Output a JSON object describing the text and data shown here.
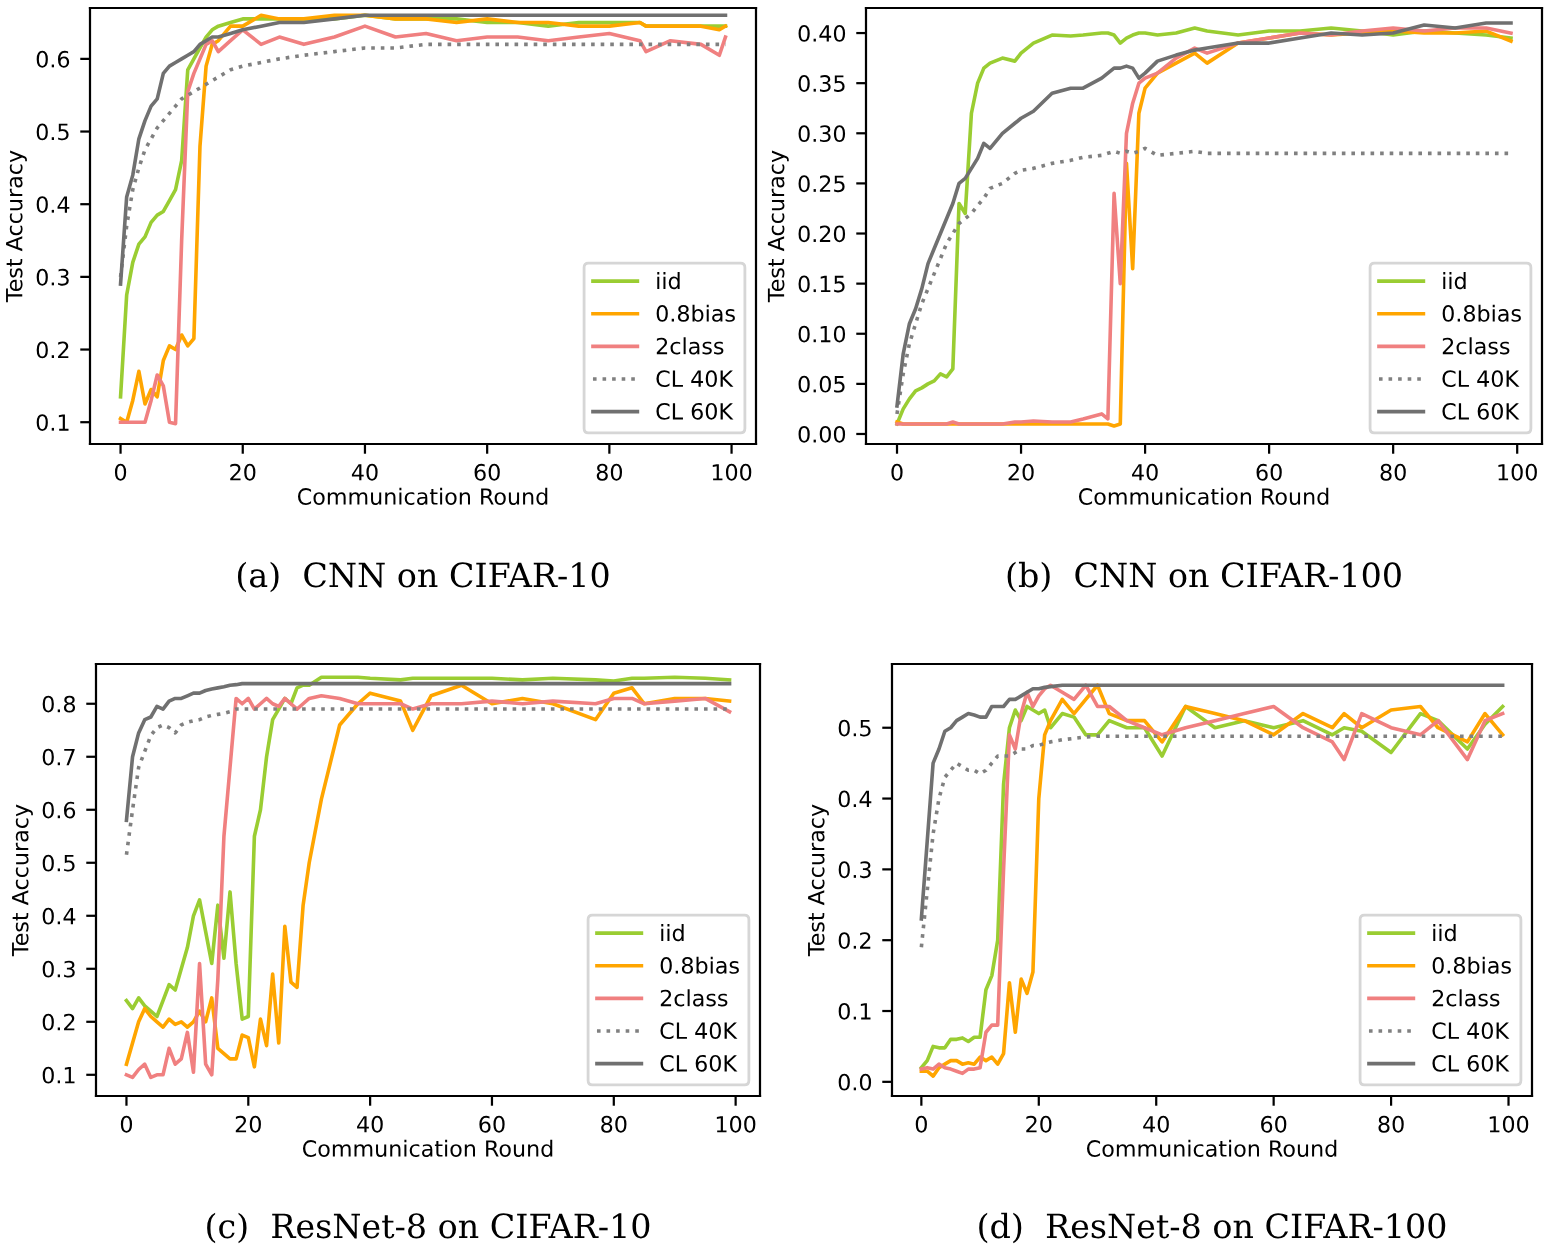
{
  "chart_data": [
    {
      "type": "line",
      "title": "(a)  CNN on CIFAR-10",
      "xlabel": "Communication Round",
      "ylabel": "Test Accuracy",
      "legend": "bottom right",
      "xlim": [
        -5,
        104
      ],
      "xticks": [
        0,
        20,
        40,
        60,
        80,
        100
      ],
      "ylim": [
        0.07,
        0.67
      ],
      "yticks": [
        0.1,
        0.2,
        0.3,
        0.4,
        0.5,
        0.6
      ],
      "x": [
        0,
        1,
        2,
        3,
        4,
        5,
        6,
        7,
        8,
        9,
        10,
        11,
        12,
        13,
        14,
        15,
        16,
        18,
        20,
        23,
        26,
        30,
        35,
        40,
        45,
        50,
        55,
        60,
        65,
        70,
        75,
        80,
        85,
        86,
        90,
        95,
        98,
        99
      ],
      "series": [
        {
          "name": "iid",
          "color": "#9acd32",
          "values": [
            0.135,
            0.275,
            0.32,
            0.345,
            0.355,
            0.375,
            0.385,
            0.39,
            0.405,
            0.42,
            0.46,
            0.585,
            0.6,
            0.615,
            0.63,
            0.64,
            0.645,
            0.65,
            0.655,
            0.655,
            0.655,
            0.655,
            0.655,
            0.66,
            0.655,
            0.655,
            0.655,
            0.65,
            0.65,
            0.645,
            0.65,
            0.65,
            0.65,
            0.645,
            0.645,
            0.645,
            0.645,
            0.645
          ]
        },
        {
          "name": "0.8bias",
          "color": "#ffa500",
          "values": [
            0.105,
            0.1,
            0.13,
            0.17,
            0.125,
            0.145,
            0.135,
            0.185,
            0.205,
            0.2,
            0.22,
            0.205,
            0.215,
            0.48,
            0.59,
            0.62,
            0.625,
            0.645,
            0.645,
            0.66,
            0.655,
            0.655,
            0.66,
            0.66,
            0.655,
            0.655,
            0.65,
            0.655,
            0.65,
            0.65,
            0.645,
            0.645,
            0.65,
            0.645,
            0.645,
            0.645,
            0.64,
            0.645
          ]
        },
        {
          "name": "2class",
          "color": "#f08080",
          "values": [
            0.1,
            0.1,
            0.1,
            0.1,
            0.1,
            0.13,
            0.165,
            0.15,
            0.1,
            0.098,
            0.35,
            0.555,
            0.58,
            0.6,
            0.62,
            0.625,
            0.61,
            0.625,
            0.64,
            0.62,
            0.63,
            0.62,
            0.63,
            0.645,
            0.63,
            0.635,
            0.625,
            0.63,
            0.63,
            0.625,
            0.63,
            0.635,
            0.625,
            0.61,
            0.625,
            0.62,
            0.605,
            0.63
          ]
        },
        {
          "name": "CL 40K",
          "color": "#808080",
          "line_style": "dotted",
          "values": [
            0.3,
            0.37,
            0.42,
            0.45,
            0.475,
            0.49,
            0.505,
            0.515,
            0.525,
            0.535,
            0.545,
            0.55,
            0.555,
            0.56,
            0.565,
            0.57,
            0.575,
            0.585,
            0.59,
            0.595,
            0.6,
            0.605,
            0.61,
            0.615,
            0.615,
            0.62,
            0.62,
            0.62,
            0.62,
            0.62,
            0.62,
            0.62,
            0.62,
            0.62,
            0.62,
            0.62,
            0.62,
            0.62
          ]
        },
        {
          "name": "CL 60K",
          "color": "#707070",
          "values": [
            0.29,
            0.41,
            0.44,
            0.49,
            0.515,
            0.535,
            0.545,
            0.58,
            0.59,
            0.595,
            0.6,
            0.605,
            0.61,
            0.62,
            0.625,
            0.63,
            0.63,
            0.635,
            0.64,
            0.645,
            0.65,
            0.65,
            0.655,
            0.66,
            0.66,
            0.66,
            0.66,
            0.66,
            0.66,
            0.66,
            0.66,
            0.66,
            0.66,
            0.66,
            0.66,
            0.66,
            0.66,
            0.66
          ]
        }
      ]
    },
    {
      "type": "line",
      "title": "(b)  CNN on CIFAR-100",
      "xlabel": "Communication Round",
      "ylabel": "Test Accuracy",
      "legend": "bottom right",
      "xlim": [
        -5,
        104
      ],
      "xticks": [
        0,
        20,
        40,
        60,
        80,
        100
      ],
      "ylim": [
        -0.01,
        0.425
      ],
      "yticks": [
        {
          "value": 0,
          "label": "0.00"
        },
        0.05,
        {
          "value": 0.1,
          "label": "0.10"
        },
        0.15,
        {
          "value": 0.2,
          "label": "0.20"
        },
        0.25,
        {
          "value": 0.3,
          "label": "0.30"
        },
        0.35,
        {
          "value": 0.4,
          "label": "0.40"
        }
      ],
      "x": [
        0,
        1,
        2,
        3,
        4,
        5,
        6,
        7,
        8,
        9,
        10,
        11,
        12,
        13,
        14,
        15,
        17,
        19,
        20,
        22,
        25,
        28,
        30,
        33,
        34,
        35,
        36,
        37,
        38,
        39,
        40,
        42,
        45,
        48,
        50,
        55,
        60,
        65,
        70,
        75,
        80,
        85,
        90,
        95,
        99
      ],
      "series": [
        {
          "name": "iid",
          "color": "#9acd32",
          "values": [
            0.01,
            0.025,
            0.035,
            0.043,
            0.046,
            0.05,
            0.053,
            0.06,
            0.057,
            0.065,
            0.23,
            0.22,
            0.32,
            0.35,
            0.365,
            0.37,
            0.375,
            0.372,
            0.38,
            0.39,
            0.398,
            0.397,
            0.398,
            0.4,
            0.4,
            0.398,
            0.39,
            0.395,
            0.398,
            0.4,
            0.4,
            0.398,
            0.4,
            0.405,
            0.402,
            0.398,
            0.402,
            0.402,
            0.405,
            0.402,
            0.398,
            0.402,
            0.4,
            0.398,
            0.395
          ]
        },
        {
          "name": "0.8bias",
          "color": "#ffa500",
          "values": [
            0.012,
            0.01,
            0.01,
            0.01,
            0.01,
            0.01,
            0.01,
            0.01,
            0.01,
            0.01,
            0.01,
            0.01,
            0.01,
            0.01,
            0.01,
            0.01,
            0.01,
            0.01,
            0.01,
            0.01,
            0.01,
            0.01,
            0.01,
            0.01,
            0.01,
            0.008,
            0.01,
            0.27,
            0.165,
            0.32,
            0.345,
            0.36,
            0.37,
            0.38,
            0.37,
            0.39,
            0.395,
            0.4,
            0.398,
            0.4,
            0.402,
            0.4,
            0.4,
            0.402,
            0.392
          ]
        },
        {
          "name": "2class",
          "color": "#f08080",
          "values": [
            0.01,
            0.01,
            0.01,
            0.01,
            0.01,
            0.01,
            0.01,
            0.01,
            0.01,
            0.012,
            0.01,
            0.01,
            0.01,
            0.01,
            0.01,
            0.01,
            0.01,
            0.012,
            0.012,
            0.013,
            0.012,
            0.012,
            0.015,
            0.02,
            0.015,
            0.24,
            0.15,
            0.3,
            0.33,
            0.35,
            0.355,
            0.36,
            0.375,
            0.385,
            0.38,
            0.39,
            0.395,
            0.4,
            0.398,
            0.402,
            0.405,
            0.402,
            0.405,
            0.405,
            0.4
          ]
        },
        {
          "name": "CL 40K",
          "color": "#808080",
          "line_style": "dotted",
          "values": [
            0.02,
            0.06,
            0.09,
            0.11,
            0.13,
            0.145,
            0.16,
            0.175,
            0.19,
            0.2,
            0.21,
            0.215,
            0.22,
            0.228,
            0.235,
            0.245,
            0.25,
            0.26,
            0.263,
            0.265,
            0.27,
            0.273,
            0.276,
            0.278,
            0.28,
            0.282,
            0.28,
            0.282,
            0.28,
            0.282,
            0.285,
            0.278,
            0.28,
            0.282,
            0.28,
            0.28,
            0.28,
            0.28,
            0.28,
            0.28,
            0.28,
            0.28,
            0.28,
            0.28,
            0.28
          ]
        },
        {
          "name": "CL 60K",
          "color": "#707070",
          "values": [
            0.028,
            0.08,
            0.11,
            0.125,
            0.145,
            0.17,
            0.185,
            0.2,
            0.215,
            0.23,
            0.25,
            0.255,
            0.265,
            0.275,
            0.29,
            0.285,
            0.3,
            0.31,
            0.315,
            0.322,
            0.34,
            0.345,
            0.345,
            0.355,
            0.36,
            0.365,
            0.365,
            0.367,
            0.365,
            0.355,
            0.36,
            0.372,
            0.378,
            0.383,
            0.385,
            0.39,
            0.39,
            0.395,
            0.4,
            0.398,
            0.4,
            0.408,
            0.405,
            0.41,
            0.41
          ]
        }
      ]
    },
    {
      "type": "line",
      "title": "(c)  ResNet-8 on CIFAR-10",
      "xlabel": "Communication Round",
      "ylabel": "Test Accuracy",
      "legend": "bottom right",
      "xlim": [
        -5,
        104
      ],
      "xticks": [
        0,
        20,
        40,
        60,
        80,
        100
      ],
      "ylim": [
        0.06,
        0.875
      ],
      "yticks": [
        0.1,
        0.2,
        0.3,
        0.4,
        0.5,
        0.6,
        0.7,
        0.8
      ],
      "x": [
        0,
        1,
        2,
        3,
        4,
        5,
        6,
        7,
        8,
        9,
        10,
        11,
        12,
        13,
        14,
        15,
        16,
        17,
        18,
        19,
        20,
        21,
        22,
        23,
        24,
        25,
        26,
        27,
        28,
        29,
        30,
        32,
        35,
        38,
        40,
        45,
        47,
        50,
        55,
        60,
        65,
        70,
        77,
        80,
        83,
        85,
        90,
        95,
        99
      ],
      "series": [
        {
          "name": "iid",
          "color": "#9acd32",
          "values": [
            0.24,
            0.225,
            0.245,
            0.23,
            0.22,
            0.21,
            0.24,
            0.27,
            0.26,
            0.3,
            0.34,
            0.4,
            0.43,
            0.37,
            0.31,
            0.42,
            0.32,
            0.445,
            0.31,
            0.205,
            0.21,
            0.55,
            0.6,
            0.7,
            0.77,
            0.79,
            0.81,
            0.8,
            0.83,
            0.835,
            0.835,
            0.85,
            0.85,
            0.85,
            0.848,
            0.845,
            0.848,
            0.848,
            0.848,
            0.848,
            0.845,
            0.848,
            0.845,
            0.843,
            0.848,
            0.848,
            0.85,
            0.848,
            0.845
          ]
        },
        {
          "name": "0.8bias",
          "color": "#ffa500",
          "values": [
            0.12,
            0.16,
            0.2,
            0.225,
            0.21,
            0.2,
            0.19,
            0.205,
            0.195,
            0.2,
            0.19,
            0.2,
            0.22,
            0.2,
            0.245,
            0.15,
            0.14,
            0.13,
            0.13,
            0.175,
            0.17,
            0.115,
            0.205,
            0.155,
            0.29,
            0.16,
            0.38,
            0.275,
            0.265,
            0.42,
            0.5,
            0.62,
            0.76,
            0.8,
            0.82,
            0.805,
            0.75,
            0.815,
            0.835,
            0.8,
            0.81,
            0.8,
            0.77,
            0.82,
            0.83,
            0.8,
            0.81,
            0.81,
            0.805
          ]
        },
        {
          "name": "2class",
          "color": "#f08080",
          "values": [
            0.1,
            0.095,
            0.11,
            0.12,
            0.095,
            0.1,
            0.1,
            0.15,
            0.12,
            0.13,
            0.18,
            0.105,
            0.31,
            0.12,
            0.1,
            0.28,
            0.55,
            0.68,
            0.81,
            0.8,
            0.81,
            0.79,
            0.8,
            0.81,
            0.8,
            0.795,
            0.81,
            0.8,
            0.79,
            0.8,
            0.81,
            0.815,
            0.81,
            0.8,
            0.8,
            0.8,
            0.79,
            0.8,
            0.8,
            0.805,
            0.8,
            0.805,
            0.8,
            0.81,
            0.81,
            0.8,
            0.805,
            0.81,
            0.785
          ]
        },
        {
          "name": "CL 40K",
          "color": "#808080",
          "line_style": "dotted",
          "values": [
            0.515,
            0.6,
            0.68,
            0.71,
            0.74,
            0.755,
            0.76,
            0.755,
            0.745,
            0.76,
            0.765,
            0.768,
            0.77,
            0.775,
            0.778,
            0.78,
            0.782,
            0.785,
            0.79,
            0.79,
            0.79,
            0.79,
            0.79,
            0.79,
            0.79,
            0.79,
            0.79,
            0.79,
            0.79,
            0.79,
            0.79,
            0.79,
            0.79,
            0.79,
            0.79,
            0.79,
            0.79,
            0.79,
            0.79,
            0.79,
            0.79,
            0.79,
            0.79,
            0.79,
            0.79,
            0.79,
            0.79,
            0.79,
            0.79
          ]
        },
        {
          "name": "CL 60K",
          "color": "#707070",
          "values": [
            0.58,
            0.7,
            0.745,
            0.77,
            0.775,
            0.795,
            0.79,
            0.805,
            0.81,
            0.81,
            0.815,
            0.82,
            0.82,
            0.825,
            0.828,
            0.83,
            0.832,
            0.835,
            0.836,
            0.838,
            0.838,
            0.838,
            0.838,
            0.838,
            0.838,
            0.838,
            0.838,
            0.838,
            0.838,
            0.838,
            0.838,
            0.838,
            0.838,
            0.838,
            0.838,
            0.838,
            0.838,
            0.838,
            0.838,
            0.838,
            0.838,
            0.838,
            0.838,
            0.838,
            0.838,
            0.838,
            0.838,
            0.838,
            0.838
          ]
        }
      ]
    },
    {
      "type": "line",
      "title": "(d)  ResNet-8 on CIFAR-100",
      "xlabel": "Communication Round",
      "ylabel": "Test Accuracy",
      "legend": "bottom right",
      "xlim": [
        -5,
        104
      ],
      "xticks": [
        0,
        20,
        40,
        60,
        80,
        100
      ],
      "ylim": [
        -0.02,
        0.59
      ],
      "yticks": [
        {
          "value": 0,
          "label": "0.0"
        },
        0.1,
        0.2,
        0.3,
        0.4,
        0.5
      ],
      "x": [
        0,
        1,
        2,
        3,
        4,
        5,
        6,
        7,
        8,
        9,
        10,
        11,
        12,
        13,
        14,
        15,
        16,
        17,
        18,
        19,
        20,
        21,
        22,
        24,
        26,
        28,
        30,
        32,
        35,
        38,
        41,
        45,
        50,
        55,
        60,
        65,
        70,
        72,
        75,
        80,
        85,
        88,
        93,
        96,
        99
      ],
      "series": [
        {
          "name": "iid",
          "color": "#9acd32",
          "values": [
            0.02,
            0.03,
            0.05,
            0.048,
            0.048,
            0.06,
            0.06,
            0.062,
            0.057,
            0.063,
            0.063,
            0.13,
            0.15,
            0.2,
            0.42,
            0.5,
            0.525,
            0.51,
            0.53,
            0.525,
            0.52,
            0.525,
            0.5,
            0.52,
            0.515,
            0.49,
            0.49,
            0.51,
            0.5,
            0.5,
            0.46,
            0.53,
            0.5,
            0.51,
            0.5,
            0.51,
            0.49,
            0.5,
            0.495,
            0.465,
            0.52,
            0.51,
            0.47,
            0.505,
            0.53
          ]
        },
        {
          "name": "0.8bias",
          "color": "#ffa500",
          "values": [
            0.015,
            0.015,
            0.008,
            0.02,
            0.025,
            0.03,
            0.03,
            0.025,
            0.027,
            0.025,
            0.035,
            0.03,
            0.035,
            0.025,
            0.04,
            0.14,
            0.07,
            0.145,
            0.125,
            0.155,
            0.4,
            0.49,
            0.51,
            0.54,
            0.52,
            0.54,
            0.56,
            0.52,
            0.51,
            0.51,
            0.48,
            0.53,
            0.52,
            0.51,
            0.49,
            0.52,
            0.5,
            0.52,
            0.5,
            0.525,
            0.53,
            0.5,
            0.48,
            0.52,
            0.49
          ]
        },
        {
          "name": "2class",
          "color": "#f08080",
          "values": [
            0.018,
            0.02,
            0.018,
            0.025,
            0.02,
            0.018,
            0.015,
            0.012,
            0.018,
            0.018,
            0.02,
            0.07,
            0.08,
            0.08,
            0.3,
            0.49,
            0.47,
            0.52,
            0.55,
            0.53,
            0.545,
            0.555,
            0.56,
            0.55,
            0.54,
            0.56,
            0.53,
            0.53,
            0.51,
            0.5,
            0.49,
            0.5,
            0.51,
            0.52,
            0.53,
            0.5,
            0.48,
            0.455,
            0.52,
            0.5,
            0.49,
            0.51,
            0.455,
            0.51,
            0.52
          ]
        },
        {
          "name": "CL 40K",
          "color": "#808080",
          "line_style": "dotted",
          "values": [
            0.19,
            0.27,
            0.35,
            0.4,
            0.43,
            0.44,
            0.45,
            0.445,
            0.44,
            0.44,
            0.435,
            0.44,
            0.45,
            0.46,
            0.46,
            0.46,
            0.465,
            0.47,
            0.47,
            0.475,
            0.475,
            0.478,
            0.48,
            0.483,
            0.485,
            0.487,
            0.488,
            0.488,
            0.488,
            0.488,
            0.488,
            0.488,
            0.488,
            0.488,
            0.488,
            0.488,
            0.488,
            0.488,
            0.488,
            0.488,
            0.488,
            0.488,
            0.488,
            0.488,
            0.488
          ]
        },
        {
          "name": "CL 60K",
          "color": "#707070",
          "values": [
            0.23,
            0.34,
            0.45,
            0.47,
            0.495,
            0.5,
            0.51,
            0.515,
            0.52,
            0.518,
            0.515,
            0.515,
            0.53,
            0.53,
            0.53,
            0.54,
            0.54,
            0.545,
            0.55,
            0.555,
            0.555,
            0.557,
            0.558,
            0.56,
            0.56,
            0.56,
            0.56,
            0.56,
            0.56,
            0.56,
            0.56,
            0.56,
            0.56,
            0.56,
            0.56,
            0.56,
            0.56,
            0.56,
            0.56,
            0.56,
            0.56,
            0.56,
            0.56,
            0.56,
            0.56
          ]
        }
      ]
    }
  ]
}
